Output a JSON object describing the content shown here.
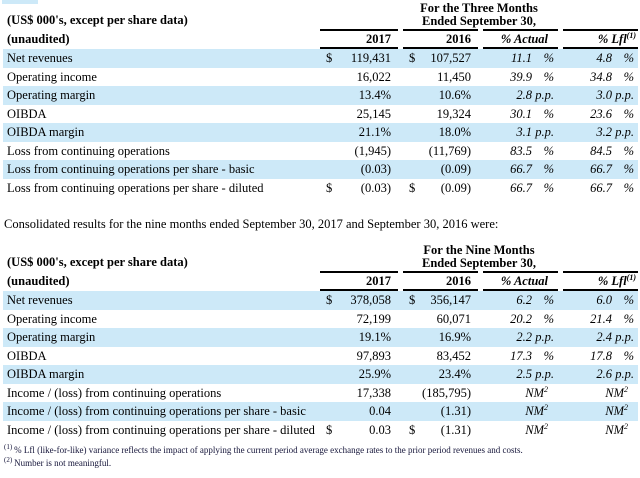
{
  "note": "Consolidated results for the nine months ended September 30, 2017 and September 30, 2016 were:",
  "colors": {
    "row_highlight": "#cde9f8",
    "border": "#000000"
  },
  "footnotes": {
    "f1_marker": "(1)",
    "f1_text": "% Lfl (like-for-like) variance reflects the impact of applying the current period average exchange rates to the prior period revenues and costs.",
    "f2_marker": "(2)",
    "f2_text": "Number is not meaningful."
  },
  "tables": [
    {
      "caption": "(US$ 000's, except per share data)",
      "caption2": "(unaudited)",
      "period_line1": "For the Three Months",
      "period_line2": "Ended September 30,",
      "col_2017": "2017",
      "col_2016": "2016",
      "col_actual": "% Actual",
      "col_lfl": "% Lfl",
      "col_lfl_sup": "(1)",
      "rows": [
        {
          "label": "Net revenues",
          "cur1": "$",
          "v1": "119,431",
          "cur2": "$",
          "v2": "107,527",
          "a": "11.1",
          "au": "%",
          "l": "4.8",
          "lu": "%"
        },
        {
          "label": "Operating income",
          "v1": "16,022",
          "v2": "11,450",
          "a": "39.9",
          "au": "%",
          "l": "34.8",
          "lu": "%"
        },
        {
          "label": "Operating margin",
          "v1": "13.4%",
          "v2": "10.6%",
          "a": "2.8",
          "au": "p.p.",
          "l": "3.0",
          "lu": "p.p."
        },
        {
          "label": "OIBDA",
          "v1": "25,145",
          "v2": "19,324",
          "a": "30.1",
          "au": "%",
          "l": "23.6",
          "lu": "%"
        },
        {
          "label": "OIBDA margin",
          "v1": "21.1%",
          "v2": "18.0%",
          "a": "3.1",
          "au": "p.p.",
          "l": "3.2",
          "lu": "p.p."
        },
        {
          "label": "Loss from continuing operations",
          "v1": "(1,945)",
          "v2": "(11,769)",
          "a": "83.5",
          "au": "%",
          "l": "84.5",
          "lu": "%"
        },
        {
          "label": "Loss from continuing operations per share - basic",
          "v1": "(0.03)",
          "v2": "(0.09)",
          "a": "66.7",
          "au": "%",
          "l": "66.7",
          "lu": "%"
        },
        {
          "label": "Loss from continuing operations per share - diluted",
          "cur1": "$",
          "v1": "(0.03)",
          "cur2": "$",
          "v2": "(0.09)",
          "a": "66.7",
          "au": "%",
          "l": "66.7",
          "lu": "%"
        }
      ]
    },
    {
      "caption": "(US$ 000's, except per share data)",
      "caption2": "(unaudited)",
      "period_line1": "For the Nine Months",
      "period_line2": "Ended September 30,",
      "col_2017": "2017",
      "col_2016": "2016",
      "col_actual": "% Actual",
      "col_lfl": "% Lfl",
      "col_lfl_sup": "(1)",
      "rows": [
        {
          "label": "Net revenues",
          "cur1": "$",
          "v1": "378,058",
          "cur2": "$",
          "v2": "356,147",
          "a": "6.2",
          "au": "%",
          "l": "6.0",
          "lu": "%"
        },
        {
          "label": "Operating income",
          "v1": "72,199",
          "v2": "60,071",
          "a": "20.2",
          "au": "%",
          "l": "21.4",
          "lu": "%"
        },
        {
          "label": "Operating margin",
          "v1": "19.1%",
          "v2": "16.9%",
          "a": "2.2",
          "au": "p.p.",
          "l": "2.4",
          "lu": "p.p."
        },
        {
          "label": "OIBDA",
          "v1": "97,893",
          "v2": "83,452",
          "a": "17.3",
          "au": "%",
          "l": "17.8",
          "lu": "%"
        },
        {
          "label": "OIBDA margin",
          "v1": "25.9%",
          "v2": "23.4%",
          "a": "2.5",
          "au": "p.p.",
          "l": "2.6",
          "lu": "p.p."
        },
        {
          "label": "Income / (loss) from continuing operations",
          "v1": "17,338",
          "v2": "(185,795)",
          "a": "NM",
          "a_sup": "2",
          "l": "NM",
          "l_sup": "2"
        },
        {
          "label": "Income / (loss) from continuing operations per share - basic",
          "v1": "0.04",
          "v2": "(1.31)",
          "a": "NM",
          "a_sup": "2",
          "l": "NM",
          "l_sup": "2"
        },
        {
          "label": "Income / (loss) from continuing operations per share - diluted",
          "cur1": "$",
          "v1": "0.03",
          "cur2": "$",
          "v2": "(1.31)",
          "a": "NM",
          "a_sup": "2",
          "l": "NM",
          "l_sup": "2"
        }
      ]
    }
  ]
}
